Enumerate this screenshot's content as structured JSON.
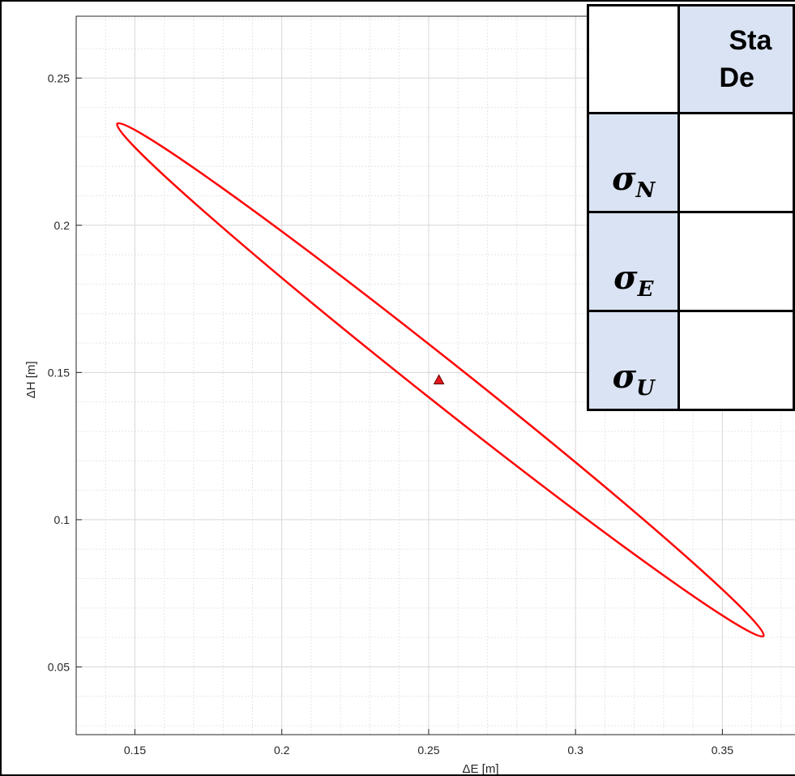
{
  "chart_data": {
    "type": "scatter",
    "title": "",
    "xlabel": "ΔE [m]",
    "ylabel": "ΔH [m]",
    "xlim": [
      0.13,
      0.375
    ],
    "ylim": [
      0.027,
      0.271
    ],
    "xticks": [
      0.15,
      0.2,
      0.25,
      0.3,
      0.35
    ],
    "xtick_labels": [
      "0.15",
      "0.2",
      "0.25",
      "0.3",
      "0.35"
    ],
    "yticks": [
      0.05,
      0.1,
      0.15,
      0.2,
      0.25
    ],
    "ytick_labels": [
      "0.05",
      "0.1",
      "0.15",
      "0.2",
      "0.25"
    ],
    "grid": true,
    "minor_grid": true,
    "series": [
      {
        "kind": "marker",
        "marker": "triangle",
        "x": [
          0.2535
        ],
        "y": [
          0.1475
        ],
        "color": "#e8141c"
      },
      {
        "kind": "ellipse",
        "center": [
          0.2535,
          0.1475
        ],
        "endpoint_upper_left": [
          0.144,
          0.2345
        ],
        "endpoint_lower_right": [
          0.364,
          0.0605
        ],
        "half_width_perpendicular": 0.0071,
        "color": "#ff0000"
      }
    ]
  },
  "table": {
    "header_text_line1": "Sta",
    "header_text_line2": "De",
    "rows": [
      {
        "symbol": "σ",
        "subscript": "N",
        "value": ""
      },
      {
        "symbol": "σ",
        "subscript": "E",
        "value": ""
      },
      {
        "symbol": "σ",
        "subscript": "U",
        "value": ""
      }
    ],
    "header_fill": "#dae3f3"
  }
}
